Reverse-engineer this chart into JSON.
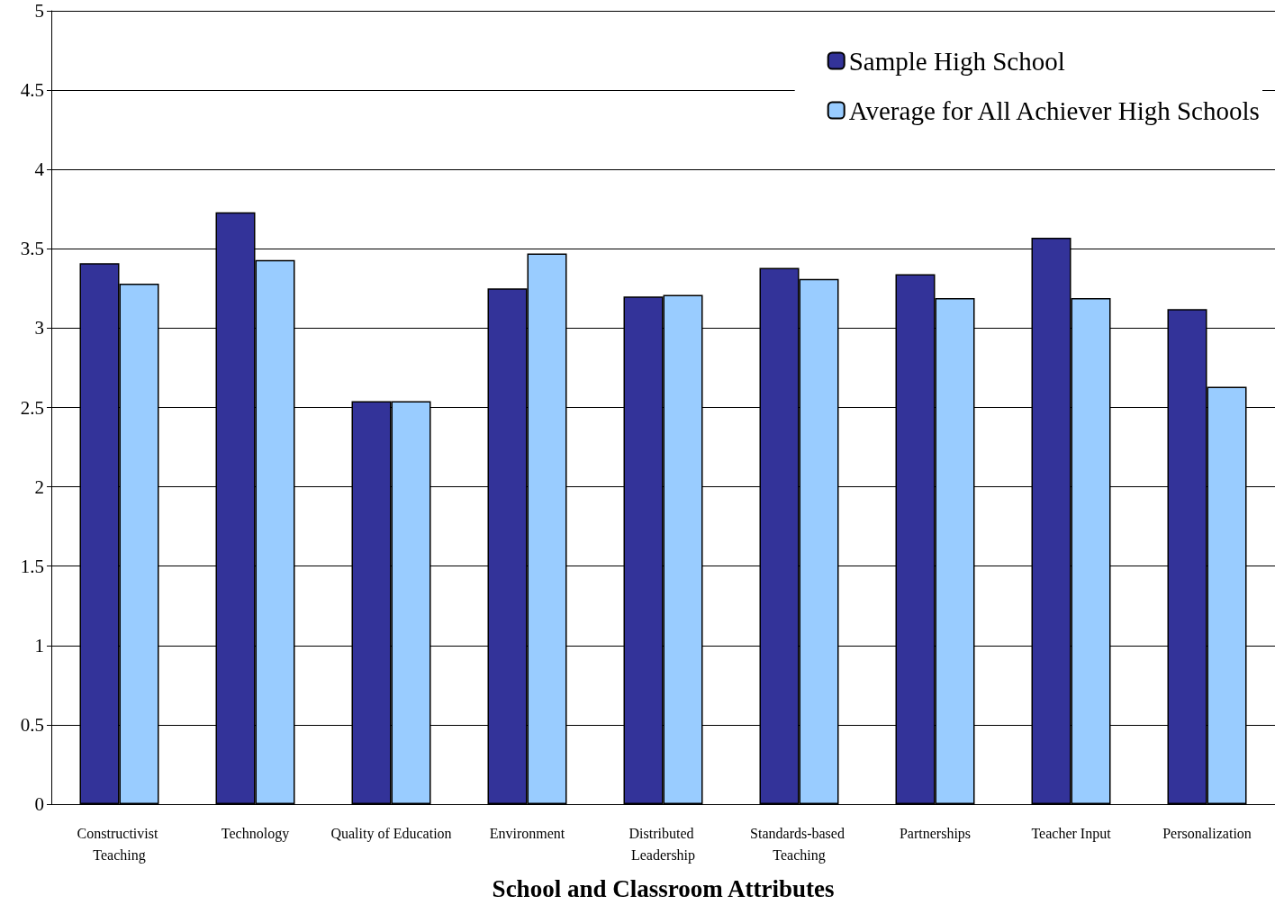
{
  "chart_data": {
    "type": "bar",
    "xlabel": "School and Classroom Attributes",
    "categories": [
      "Constructivist Teaching",
      "Technology",
      "Quality of Education",
      "Environment",
      "Distributed Leadership",
      "Standards-based Teaching",
      "Partnerships",
      "Teacher Input",
      "Personalization"
    ],
    "series": [
      {
        "name": "Sample High School",
        "color": "#333399",
        "values": [
          3.41,
          3.73,
          2.54,
          3.25,
          3.2,
          3.38,
          3.34,
          3.57,
          3.12
        ]
      },
      {
        "name": "Average for All Achiever High Schools",
        "color": "#99ccff",
        "values": [
          3.28,
          3.43,
          2.54,
          3.47,
          3.21,
          3.31,
          3.19,
          3.19,
          2.63
        ]
      }
    ],
    "ylim": [
      0,
      5
    ],
    "yticks": [
      0,
      0.5,
      1,
      1.5,
      2,
      2.5,
      3,
      3.5,
      4,
      4.5,
      5
    ],
    "grid": "y",
    "legend": "top right"
  }
}
